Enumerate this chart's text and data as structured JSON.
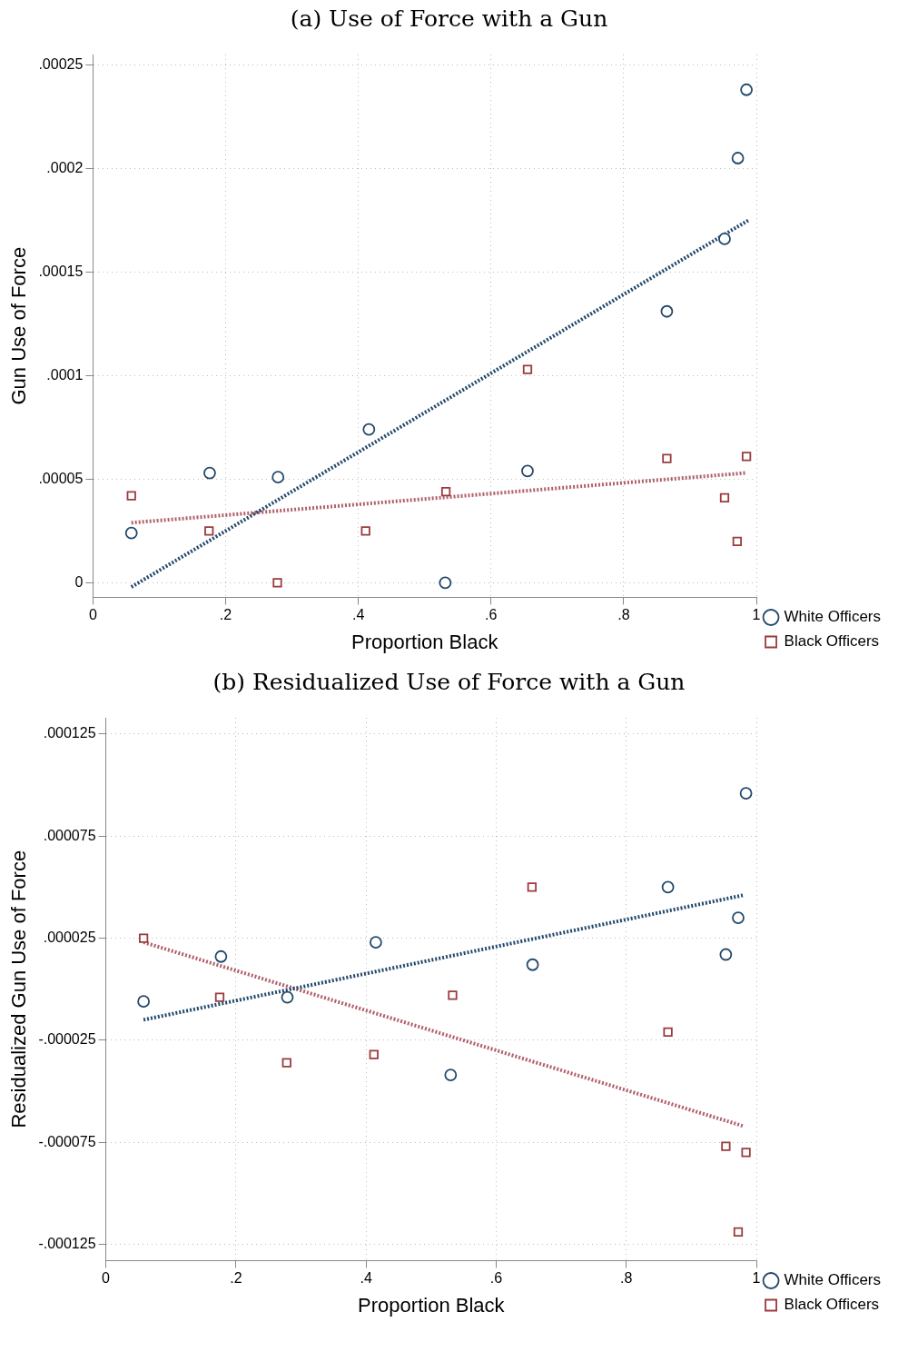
{
  "chart_data": [
    {
      "type": "scatter",
      "title": "(a) Use of Force with a Gun",
      "xlabel": "Proportion Black",
      "ylabel": "Gun Use of Force",
      "xlim": [
        0,
        1
      ],
      "xticks": [
        {
          "value": 0,
          "label": "0"
        },
        {
          "value": 0.2,
          "label": ".2"
        },
        {
          "value": 0.4,
          "label": ".4"
        },
        {
          "value": 0.6,
          "label": ".6"
        },
        {
          "value": 0.8,
          "label": ".8"
        },
        {
          "value": 1,
          "label": "1"
        }
      ],
      "ylim": [
        -7e-06,
        0.000255
      ],
      "yticks": [
        {
          "value": 0,
          "label": "0"
        },
        {
          "value": 5e-05,
          "label": ".00005"
        },
        {
          "value": 0.0001,
          "label": ".0001"
        },
        {
          "value": 0.00015,
          "label": ".00015"
        },
        {
          "value": 0.0002,
          "label": ".0002"
        },
        {
          "value": 0.00025,
          "label": ".00025"
        }
      ],
      "grid": true,
      "legend": "right bottom",
      "series": [
        {
          "name": "White Officers",
          "color": "#22486b",
          "marker": "circle",
          "x": [
            0.058,
            0.176,
            0.279,
            0.416,
            0.531,
            0.655,
            0.865,
            0.952,
            0.972,
            0.985
          ],
          "values": [
            2.4e-05,
            5.3e-05,
            5.1e-05,
            7.4e-05,
            0,
            5.4e-05,
            0.000131,
            0.000166,
            0.000205,
            0.000238
          ]
        },
        {
          "name": "Black Officers",
          "color": "#9b3a3f",
          "marker": "square",
          "x": [
            0.058,
            0.175,
            0.278,
            0.411,
            0.532,
            0.655,
            0.865,
            0.952,
            0.971,
            0.985
          ],
          "values": [
            4.2e-05,
            2.5e-05,
            0,
            2.5e-05,
            4.4e-05,
            0.000103,
            6e-05,
            4.1e-05,
            2e-05,
            6.1e-05
          ]
        },
        {
          "type": "line",
          "color": "#22486b",
          "line_style": "dotted",
          "x": [
            0.058,
            0.988
          ],
          "values": [
            -2e-06,
            0.000175
          ]
        },
        {
          "type": "line",
          "color": "#b0606a",
          "line_style": "dotted",
          "x": [
            0.058,
            0.983
          ],
          "values": [
            2.9e-05,
            5.3e-05
          ]
        }
      ]
    },
    {
      "type": "scatter",
      "title": "(b) Residualized Use of Force with a Gun",
      "xlabel": "Proportion Black",
      "ylabel": "Residualized Gun Use of Force",
      "xlim": [
        0,
        1
      ],
      "xticks": [
        {
          "value": 0,
          "label": "0"
        },
        {
          "value": 0.2,
          "label": ".2"
        },
        {
          "value": 0.4,
          "label": ".4"
        },
        {
          "value": 0.6,
          "label": ".6"
        },
        {
          "value": 0.8,
          "label": ".8"
        },
        {
          "value": 1,
          "label": "1"
        }
      ],
      "ylim": [
        -0.000133,
        0.000133
      ],
      "yticks": [
        {
          "value": -0.000125,
          "label": "-.000125"
        },
        {
          "value": -7.5e-05,
          "label": "-.000075"
        },
        {
          "value": -2.5e-05,
          "label": "-.000025"
        },
        {
          "value": 2.5e-05,
          "label": ".000025"
        },
        {
          "value": 7.5e-05,
          "label": ".000075"
        },
        {
          "value": 0.000125,
          "label": ".000125"
        }
      ],
      "grid": true,
      "legend": "right bottom",
      "series": [
        {
          "name": "White Officers",
          "color": "#22486b",
          "marker": "circle",
          "x": [
            0.058,
            0.177,
            0.279,
            0.415,
            0.53,
            0.656,
            0.864,
            0.953,
            0.972,
            0.984
          ],
          "values": [
            -6e-06,
            1.6e-05,
            -4e-06,
            2.3e-05,
            -4.2e-05,
            1.2e-05,
            5e-05,
            1.7e-05,
            3.5e-05,
            9.6e-05
          ]
        },
        {
          "name": "Black Officers",
          "color": "#9b3a3f",
          "marker": "square",
          "x": [
            0.058,
            0.175,
            0.278,
            0.412,
            0.533,
            0.655,
            0.864,
            0.953,
            0.984,
            0.972
          ],
          "values": [
            2.5e-05,
            -4e-06,
            -3.6e-05,
            -3.2e-05,
            -3e-06,
            5e-05,
            -2.1e-05,
            -7.7e-05,
            -8e-05,
            -0.000119
          ]
        },
        {
          "type": "line",
          "color": "#22486b",
          "line_style": "dotted",
          "x": [
            0.058,
            0.979
          ],
          "values": [
            -1.5e-05,
            4.6e-05
          ]
        },
        {
          "type": "line",
          "color": "#b0606a",
          "line_style": "dotted",
          "x": [
            0.058,
            0.979
          ],
          "values": [
            2.3e-05,
            -6.7e-05
          ]
        }
      ]
    }
  ]
}
